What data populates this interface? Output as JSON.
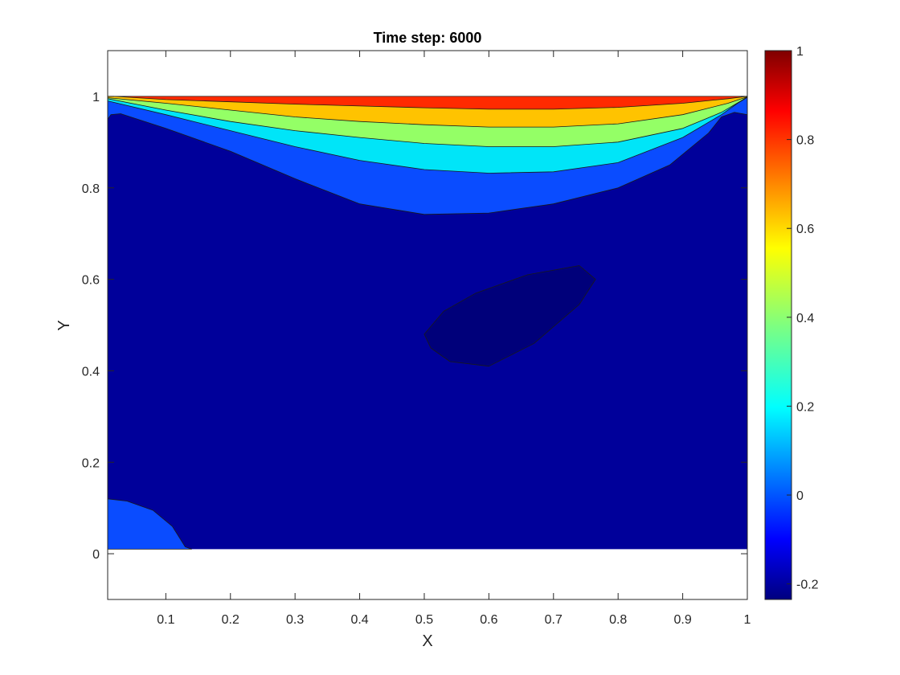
{
  "chart_data": {
    "type": "contourf",
    "title": "Time step: 6000",
    "xlabel": "X",
    "ylabel": "Y",
    "xlim": [
      0.01,
      1.0
    ],
    "ylim": [
      -0.1,
      1.1
    ],
    "x_ticks": [
      "0.1",
      "0.2",
      "0.3",
      "0.4",
      "0.5",
      "0.6",
      "0.7",
      "0.8",
      "0.9",
      "1"
    ],
    "x_tick_values": [
      0.1,
      0.2,
      0.3,
      0.4,
      0.5,
      0.6,
      0.7,
      0.8,
      0.9,
      1.0
    ],
    "y_ticks": [
      "0",
      "0.2",
      "0.4",
      "0.6",
      "0.8",
      "1"
    ],
    "y_tick_values": [
      0,
      0.2,
      0.4,
      0.6,
      0.8,
      1.0
    ],
    "colorbar": {
      "colormap": "jet",
      "range": [
        -0.235,
        1.0
      ],
      "ticks": [
        "-0.2",
        "0",
        "0.2",
        "0.4",
        "0.6",
        "0.8",
        "1"
      ],
      "tick_values": [
        -0.2,
        0,
        0.2,
        0.4,
        0.6,
        0.8,
        1.0
      ]
    },
    "contour_bands": [
      {
        "name": "level-below-neg0.2",
        "value": -0.22,
        "color": "#00007a",
        "polygon": [
          [
            0.5,
            0.48
          ],
          [
            0.53,
            0.53
          ],
          [
            0.58,
            0.57
          ],
          [
            0.66,
            0.61
          ],
          [
            0.74,
            0.63
          ],
          [
            0.765,
            0.6
          ],
          [
            0.74,
            0.545
          ],
          [
            0.67,
            0.46
          ],
          [
            0.6,
            0.41
          ],
          [
            0.54,
            0.42
          ],
          [
            0.51,
            0.45
          ]
        ]
      },
      {
        "name": "level-0.0-bottom-left",
        "value": 0.0,
        "color": "#0a4cff",
        "polygon": [
          [
            0.01,
            0.01
          ],
          [
            0.01,
            0.12
          ],
          [
            0.04,
            0.115
          ],
          [
            0.08,
            0.095
          ],
          [
            0.11,
            0.06
          ],
          [
            0.13,
            0.015
          ],
          [
            0.14,
            0.01
          ]
        ]
      },
      {
        "name": "level-0.0-top",
        "value": 0.0,
        "color": "#0a4cff",
        "polygon": [
          [
            0.01,
            0.95
          ],
          [
            0.015,
            0.96
          ],
          [
            0.03,
            0.962
          ],
          [
            0.1,
            0.93
          ],
          [
            0.2,
            0.88
          ],
          [
            0.3,
            0.82
          ],
          [
            0.4,
            0.765
          ],
          [
            0.5,
            0.742
          ],
          [
            0.6,
            0.745
          ],
          [
            0.7,
            0.765
          ],
          [
            0.8,
            0.8
          ],
          [
            0.88,
            0.85
          ],
          [
            0.94,
            0.92
          ],
          [
            0.96,
            0.955
          ],
          [
            0.98,
            0.965
          ],
          [
            1.0,
            0.96
          ],
          [
            1.0,
            1.0
          ],
          [
            0.01,
            1.0
          ]
        ]
      },
      {
        "name": "level-0.2",
        "value": 0.2,
        "color": "#00e5f8",
        "polygon": [
          [
            0.01,
            0.99
          ],
          [
            0.1,
            0.96
          ],
          [
            0.2,
            0.925
          ],
          [
            0.3,
            0.89
          ],
          [
            0.4,
            0.86
          ],
          [
            0.5,
            0.84
          ],
          [
            0.6,
            0.832
          ],
          [
            0.7,
            0.835
          ],
          [
            0.8,
            0.855
          ],
          [
            0.9,
            0.91
          ],
          [
            0.96,
            0.96
          ],
          [
            0.985,
            0.985
          ],
          [
            1.0,
            0.998
          ],
          [
            1.0,
            1.0
          ],
          [
            0.01,
            1.0
          ]
        ]
      },
      {
        "name": "level-0.4",
        "value": 0.4,
        "color": "#94ff66",
        "polygon": [
          [
            0.01,
            0.995
          ],
          [
            0.1,
            0.97
          ],
          [
            0.2,
            0.945
          ],
          [
            0.3,
            0.925
          ],
          [
            0.4,
            0.91
          ],
          [
            0.5,
            0.897
          ],
          [
            0.6,
            0.89
          ],
          [
            0.7,
            0.89
          ],
          [
            0.8,
            0.9
          ],
          [
            0.9,
            0.93
          ],
          [
            0.96,
            0.965
          ],
          [
            0.99,
            0.99
          ],
          [
            1.0,
            0.999
          ],
          [
            1.0,
            1.0
          ],
          [
            0.01,
            1.0
          ]
        ]
      },
      {
        "name": "level-0.6",
        "value": 0.6,
        "color": "#ffc300",
        "polygon": [
          [
            0.01,
            0.997
          ],
          [
            0.1,
            0.985
          ],
          [
            0.2,
            0.97
          ],
          [
            0.3,
            0.955
          ],
          [
            0.4,
            0.945
          ],
          [
            0.5,
            0.938
          ],
          [
            0.6,
            0.933
          ],
          [
            0.7,
            0.933
          ],
          [
            0.8,
            0.94
          ],
          [
            0.9,
            0.96
          ],
          [
            0.97,
            0.985
          ],
          [
            1.0,
            0.999
          ],
          [
            1.0,
            1.0
          ],
          [
            0.01,
            1.0
          ]
        ]
      },
      {
        "name": "level-0.8",
        "value": 0.8,
        "color": "#ff2a00",
        "polygon": [
          [
            0.02,
            1.0
          ],
          [
            0.1,
            0.993
          ],
          [
            0.2,
            0.988
          ],
          [
            0.3,
            0.983
          ],
          [
            0.4,
            0.979
          ],
          [
            0.5,
            0.975
          ],
          [
            0.6,
            0.972
          ],
          [
            0.7,
            0.972
          ],
          [
            0.8,
            0.976
          ],
          [
            0.9,
            0.985
          ],
          [
            0.97,
            0.995
          ],
          [
            1.0,
            1.0
          ]
        ]
      }
    ],
    "background_color": "#00009a"
  }
}
